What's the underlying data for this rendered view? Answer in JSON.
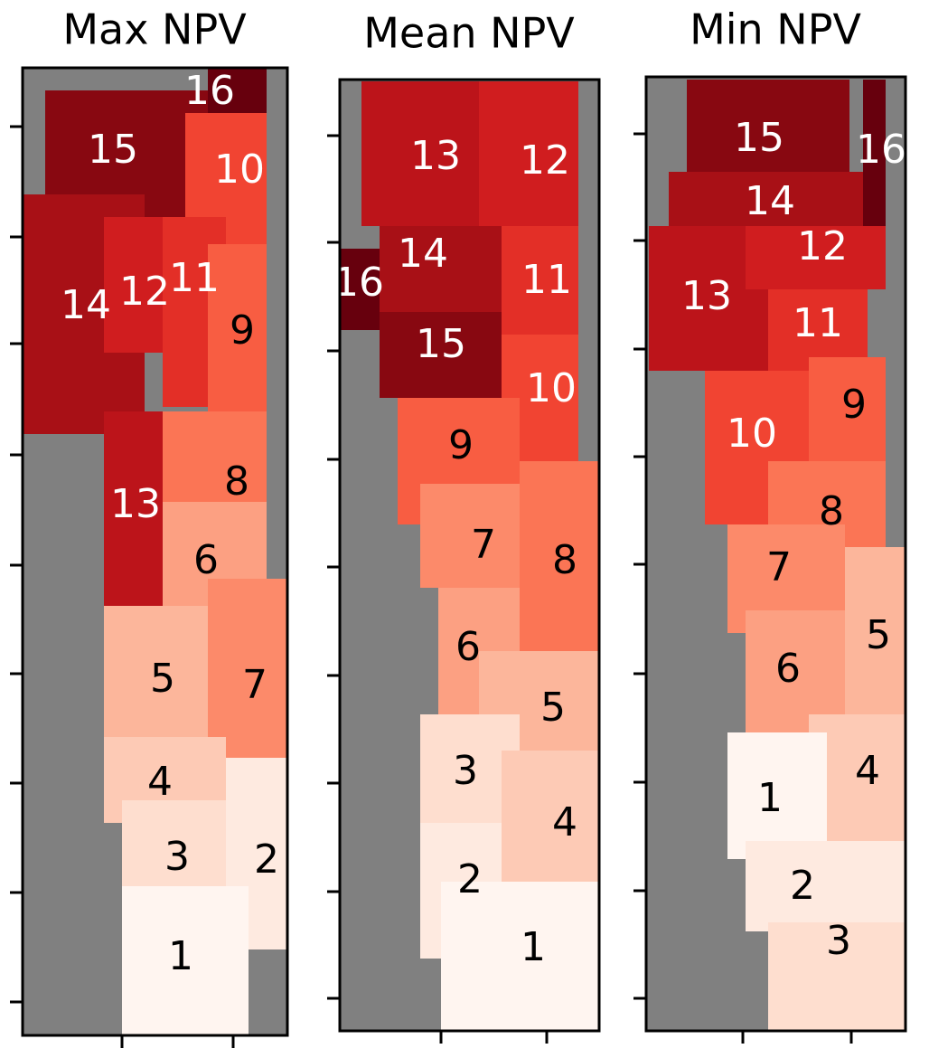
{
  "panels": [
    {
      "title": "Max NPV",
      "regions": [
        16,
        15,
        10,
        14,
        12,
        11,
        9,
        13,
        8,
        6,
        7,
        5,
        4,
        3,
        2,
        1
      ]
    },
    {
      "title": "Mean NPV",
      "regions": [
        13,
        12,
        14,
        16,
        11,
        15,
        10,
        9,
        8,
        7,
        6,
        5,
        3,
        4,
        2,
        1
      ]
    },
    {
      "title": "Min NPV",
      "regions": [
        15,
        16,
        14,
        13,
        12,
        11,
        9,
        10,
        8,
        7,
        5,
        6,
        4,
        1,
        2,
        3
      ]
    }
  ]
}
